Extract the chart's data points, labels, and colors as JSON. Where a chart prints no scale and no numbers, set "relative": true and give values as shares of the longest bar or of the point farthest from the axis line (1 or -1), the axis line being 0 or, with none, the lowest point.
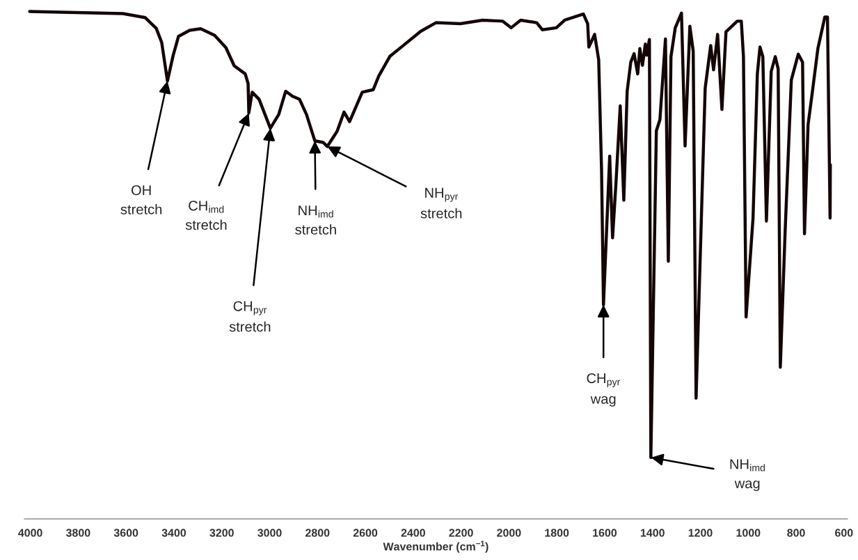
{
  "chart_data": {
    "type": "line",
    "relative": true,
    "xlabel": "Wavenumber (cm$^{−1}$)",
    "xlim": [
      4025,
      585
    ],
    "xticks": [
      4000,
      3800,
      3600,
      3400,
      3200,
      3000,
      2800,
      2600,
      2400,
      2200,
      2000,
      1800,
      1600,
      1400,
      1200,
      1000,
      800,
      600
    ],
    "grid": false,
    "legend": false,
    "series": [
      {
        "color": "#140607",
        "x": [
          4003,
          3613,
          3520,
          3474,
          3451,
          3427,
          3404,
          3381,
          3334,
          3288,
          3230,
          3183,
          3148,
          3102,
          3090,
          3087,
          3073,
          3044,
          2997,
          2962,
          2933,
          2904,
          2875,
          2846,
          2811,
          2776,
          2759,
          2718,
          2689,
          2666,
          2613,
          2567,
          2544,
          2497,
          2439,
          2369,
          2305,
          2203,
          2110,
          2026,
          1991,
          1951,
          1884,
          1860,
          1802,
          1767,
          1689,
          1671,
          1666,
          1642,
          1625,
          1613,
          1605,
          1579,
          1567,
          1553,
          1535,
          1520,
          1506,
          1491,
          1477,
          1462,
          1453,
          1442,
          1430,
          1424,
          1413,
          1407,
          1384,
          1369,
          1346,
          1334,
          1323,
          1305,
          1279,
          1264,
          1244,
          1230,
          1218,
          1180,
          1157,
          1145,
          1128,
          1110,
          1093,
          1046,
          1029,
          1020,
          1009,
          980,
          962,
          951,
          939,
          924,
          904,
          887,
          875,
          866,
          846,
          820,
          791,
          773,
          765,
          750,
          733,
          709,
          680,
          669,
          658,
          657
        ],
        "values": [
          1.0,
          0.996,
          0.988,
          0.967,
          0.939,
          0.863,
          0.912,
          0.951,
          0.963,
          0.966,
          0.953,
          0.929,
          0.893,
          0.877,
          0.858,
          0.8,
          0.841,
          0.827,
          0.77,
          0.797,
          0.843,
          0.833,
          0.827,
          0.797,
          0.745,
          0.742,
          0.734,
          0.764,
          0.802,
          0.783,
          0.841,
          0.846,
          0.873,
          0.912,
          0.934,
          0.961,
          0.978,
          0.976,
          0.983,
          0.981,
          0.968,
          0.983,
          0.978,
          0.964,
          0.968,
          0.983,
          0.995,
          0.976,
          0.93,
          0.955,
          0.905,
          0.687,
          0.422,
          0.715,
          0.554,
          0.66,
          0.814,
          0.628,
          0.843,
          0.9,
          0.917,
          0.877,
          0.927,
          0.894,
          0.936,
          0.914,
          0.945,
          0.121,
          0.765,
          0.787,
          0.946,
          0.508,
          0.911,
          0.968,
          0.997,
          0.735,
          0.971,
          0.922,
          0.238,
          0.849,
          0.933,
          0.885,
          0.955,
          0.807,
          0.96,
          0.981,
          0.981,
          0.911,
          0.398,
          0.593,
          0.877,
          0.93,
          0.911,
          0.587,
          0.882,
          0.911,
          0.887,
          0.299,
          0.565,
          0.865,
          0.916,
          0.9,
          0.562,
          0.777,
          0.838,
          0.927,
          0.989,
          0.989,
          0.593,
          0.698
        ]
      }
    ],
    "annotations": [
      {
        "text": "OH\nstretch",
        "x": 3427,
        "y": 0.863
      },
      {
        "text": "CH$_{imd}$\nstretch",
        "x": 3087,
        "y": 0.8
      },
      {
        "text": "CH$_{pyr}$\nstretch",
        "x": 2997,
        "y": 0.77
      },
      {
        "text": "NH$_{imd}$\nstretch",
        "x": 2811,
        "y": 0.745
      },
      {
        "text": "NH$_{pyr}$\nstretch",
        "x": 2759,
        "y": 0.734
      },
      {
        "text": "CH$_{pyr}$\nwag",
        "x": 1605,
        "y": 0.422
      },
      {
        "text": "NH$_{imd}$\nwag",
        "x": 1407,
        "y": 0.121
      }
    ]
  }
}
